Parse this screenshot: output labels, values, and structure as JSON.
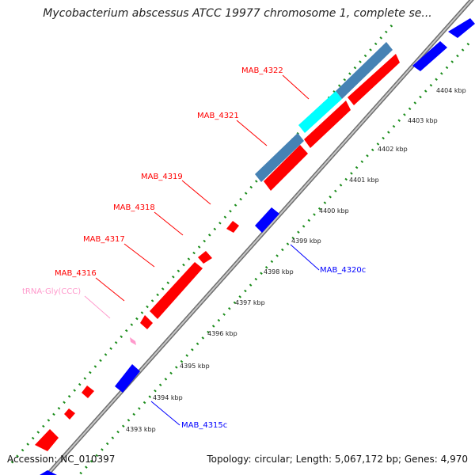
{
  "title": "Mycobacterium abscessus ATCC 19977 chromosome 1, complete se...",
  "footer": {
    "accession": "Accession: NC_010397",
    "summary": "Topology: circular; Length: 5,067,172 bp; Genes: 4,970"
  },
  "colors": {
    "forward_gene": "#ff0000",
    "reverse_gene": "#0000ff",
    "cds_feature": "#4682b4",
    "highlight_feature": "#00ffff",
    "trna": "#ff99cc",
    "backbone": "#999999",
    "dotted_track": "#1a8c1a"
  },
  "ticks": [
    {
      "label": "4393 kbp"
    },
    {
      "label": "4394 kbp"
    },
    {
      "label": "4395 kbp"
    },
    {
      "label": "4396 kbp"
    },
    {
      "label": "4397 kbp"
    },
    {
      "label": "4398 kbp"
    },
    {
      "label": "4399 kbp"
    },
    {
      "label": "4400 kbp"
    },
    {
      "label": "4401 kbp"
    },
    {
      "label": "4402 kbp"
    },
    {
      "label": "4403 kbp"
    },
    {
      "label": "4404 kbp"
    }
  ],
  "gene_labels": [
    {
      "name": "MAB_4322",
      "strand": "forward"
    },
    {
      "name": "MAB_4321",
      "strand": "forward"
    },
    {
      "name": "MAB_4319",
      "strand": "forward"
    },
    {
      "name": "MAB_4318",
      "strand": "forward"
    },
    {
      "name": "MAB_4317",
      "strand": "forward"
    },
    {
      "name": "MAB_4316",
      "strand": "forward"
    },
    {
      "name": "tRNA-Gly(CCC)",
      "strand": "forward",
      "type": "trna"
    },
    {
      "name": "MAB_4320c",
      "strand": "reverse"
    },
    {
      "name": "MAB_4315c",
      "strand": "reverse"
    }
  ]
}
